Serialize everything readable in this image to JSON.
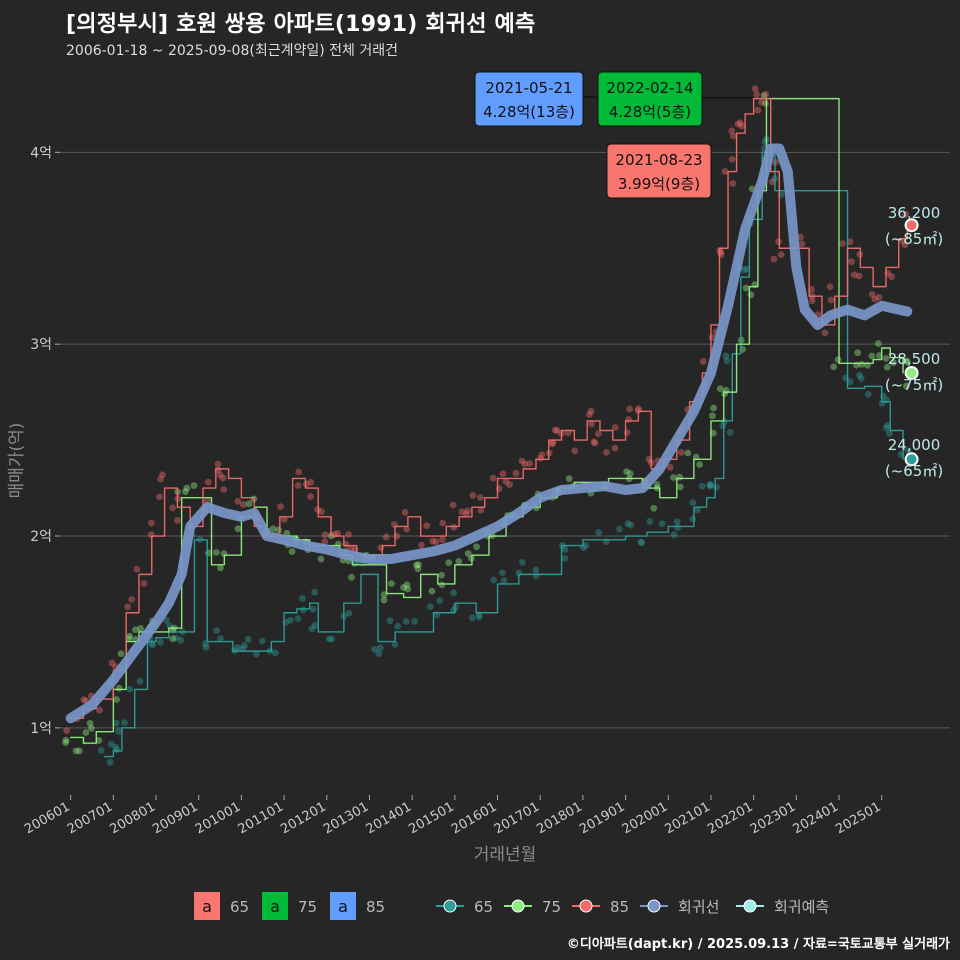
{
  "title": "[의정부시] 호원 쌍용 아파트(1991) 회귀선 예측",
  "subtitle": "2006-01-18 ~ 2025-09-08(최근계약일) 전체 거래건",
  "credit": "©디아파트(dapt.kr) / 2025.09.13 / 자료=국토교통부 실거래가",
  "colors": {
    "s65": "#2E9E9A",
    "s75": "#90EE80",
    "s85": "#F26B6B",
    "regression": "#7896C8",
    "forecast": "#9EEEE6",
    "box65": "#F8766D",
    "box75": "#00BA38",
    "box85": "#619CFF",
    "grid": "#5a5a5a",
    "background": "#262626"
  },
  "callouts": [
    {
      "date": "2021-05-21",
      "price": "4.28억(13층)",
      "color": "#619CFF"
    },
    {
      "date": "2022-02-14",
      "price": "4.28억(5층)",
      "color": "#00BA38"
    },
    {
      "date": "2021-08-23",
      "price": "3.99억(9층)",
      "color": "#F8766D"
    }
  ],
  "end_labels": [
    {
      "value": "36,200",
      "area": "(~85㎡)",
      "color": "#F26B6B"
    },
    {
      "value": "28,500",
      "area": "(~75㎡)",
      "color": "#90EE80"
    },
    {
      "value": "24,000",
      "area": "(~65㎡)",
      "color": "#2E9E9A"
    }
  ],
  "legend": {
    "box_items": [
      {
        "glyph": "a",
        "label": "65",
        "color": "#F8766D"
      },
      {
        "glyph": "a",
        "label": "75",
        "color": "#00BA38"
      },
      {
        "glyph": "a",
        "label": "85",
        "color": "#619CFF"
      }
    ],
    "line_items": [
      {
        "label": "65",
        "color": "#2E9E9A"
      },
      {
        "label": "75",
        "color": "#90EE80"
      },
      {
        "label": "85",
        "color": "#F26B6B"
      },
      {
        "label": "회귀선",
        "color": "#7896C8"
      },
      {
        "label": "회귀예측",
        "color": "#9EEEE6"
      }
    ]
  },
  "chart_data": {
    "type": "line",
    "title": "[의정부시] 호원 쌍용 아파트(1991) 회귀선 예측",
    "subtitle": "2006-01-18 ~ 2025-09-08(최근계약일) 전체 거래건",
    "xlabel": "거래년월",
    "ylabel": "매매가(억)",
    "x_ticks": [
      "200601",
      "200701",
      "200801",
      "200901",
      "201001",
      "201101",
      "201201",
      "201301",
      "201401",
      "201501",
      "201601",
      "201701",
      "201801",
      "201901",
      "202001",
      "202101",
      "202201",
      "202301",
      "202401",
      "202501"
    ],
    "y_ticks": [
      {
        "value": 1,
        "label": "1억"
      },
      {
        "value": 2,
        "label": "2억"
      },
      {
        "value": 3,
        "label": "3억"
      },
      {
        "value": 4,
        "label": "4억"
      }
    ],
    "xlim": [
      2005.75,
      2026.6
    ],
    "ylim": [
      0.65,
      4.45
    ],
    "grid": true,
    "legend_position": "bottom",
    "series": [
      {
        "name": "65",
        "x": [
          2006.8,
          2007.0,
          2007.2,
          2007.5,
          2007.8,
          2008.0,
          2008.3,
          2008.6,
          2008.9,
          2009.2,
          2009.5,
          2009.8,
          2010.1,
          2010.4,
          2010.7,
          2011.0,
          2011.3,
          2011.6,
          2011.8,
          2012.0,
          2012.4,
          2012.8,
          2013.2,
          2013.6,
          2014.0,
          2014.5,
          2015.0,
          2015.5,
          2016.0,
          2016.5,
          2017.0,
          2017.5,
          2018.0,
          2018.5,
          2019.0,
          2019.5,
          2020.0,
          2020.3,
          2020.6,
          2020.9,
          2021.1,
          2021.3,
          2021.5,
          2021.7,
          2021.9,
          2022.2,
          2022.5,
          2024.2,
          2024.6,
          2025.0,
          2025.2,
          2025.5
        ],
        "y": [
          0.85,
          0.88,
          1.0,
          1.2,
          1.45,
          1.47,
          1.5,
          1.5,
          1.98,
          1.45,
          1.45,
          1.4,
          1.4,
          1.4,
          1.45,
          1.6,
          1.62,
          1.65,
          1.5,
          1.5,
          1.65,
          1.8,
          1.45,
          1.5,
          1.5,
          1.6,
          1.65,
          1.6,
          1.75,
          1.8,
          1.8,
          1.95,
          1.98,
          1.98,
          2.0,
          2.02,
          2.05,
          2.05,
          2.15,
          2.2,
          2.3,
          2.6,
          2.95,
          3.35,
          3.65,
          4.0,
          3.8,
          2.77,
          2.78,
          2.7,
          2.55,
          2.4
        ]
      },
      {
        "name": "75",
        "x": [
          2006.0,
          2006.3,
          2006.6,
          2007.0,
          2007.3,
          2007.6,
          2008.0,
          2008.3,
          2008.6,
          2009.0,
          2009.3,
          2009.6,
          2010.0,
          2010.3,
          2010.6,
          2011.0,
          2011.3,
          2011.6,
          2012.0,
          2012.3,
          2012.6,
          2013.0,
          2013.4,
          2013.8,
          2014.2,
          2014.6,
          2015.0,
          2015.4,
          2015.8,
          2016.2,
          2016.6,
          2017.0,
          2017.4,
          2017.8,
          2018.2,
          2018.6,
          2019.0,
          2019.4,
          2019.8,
          2020.2,
          2020.6,
          2021.0,
          2021.3,
          2021.6,
          2021.9,
          2022.1,
          2022.3,
          2024.0,
          2024.4,
          2024.8,
          2025.0,
          2025.2,
          2025.5
        ],
        "y": [
          0.95,
          0.92,
          0.98,
          1.2,
          1.45,
          1.5,
          1.5,
          1.52,
          2.2,
          2.2,
          1.85,
          1.9,
          2.1,
          2.15,
          2.0,
          2.0,
          1.98,
          1.95,
          1.95,
          1.9,
          1.85,
          1.85,
          1.7,
          1.68,
          1.8,
          1.75,
          1.85,
          1.9,
          2.0,
          2.1,
          2.15,
          2.2,
          2.25,
          2.28,
          2.28,
          2.3,
          2.3,
          2.25,
          2.2,
          2.3,
          2.4,
          2.6,
          2.75,
          3.0,
          3.3,
          3.8,
          4.28,
          2.9,
          2.9,
          2.92,
          2.98,
          2.93,
          2.85
        ]
      },
      {
        "name": "85",
        "x": [
          2006.0,
          2006.3,
          2006.6,
          2007.0,
          2007.3,
          2007.6,
          2007.9,
          2008.2,
          2008.5,
          2008.8,
          2009.1,
          2009.4,
          2009.7,
          2010.0,
          2010.3,
          2010.6,
          2010.9,
          2011.2,
          2011.5,
          2011.8,
          2012.1,
          2012.4,
          2012.7,
          2013.0,
          2013.3,
          2013.6,
          2013.9,
          2014.2,
          2014.5,
          2014.8,
          2015.1,
          2015.4,
          2015.7,
          2016.0,
          2016.3,
          2016.6,
          2016.9,
          2017.2,
          2017.5,
          2017.8,
          2018.1,
          2018.4,
          2018.7,
          2019.0,
          2019.3,
          2019.6,
          2019.9,
          2020.2,
          2020.5,
          2020.8,
          2021.0,
          2021.2,
          2021.4,
          2021.6,
          2021.8,
          2022.0,
          2022.2,
          2022.4,
          2022.6,
          2023.0,
          2023.3,
          2023.6,
          2023.9,
          2024.2,
          2024.5,
          2024.8,
          2025.1,
          2025.4,
          2025.6
        ],
        "y": [
          1.05,
          1.1,
          1.15,
          1.3,
          1.6,
          1.8,
          2.0,
          2.25,
          2.15,
          2.05,
          2.25,
          2.35,
          2.3,
          2.2,
          2.05,
          2.0,
          2.1,
          2.3,
          2.25,
          2.1,
          2.0,
          1.95,
          1.9,
          1.9,
          1.95,
          2.05,
          2.1,
          2.0,
          2.0,
          2.05,
          2.1,
          2.15,
          2.2,
          2.3,
          2.3,
          2.35,
          2.4,
          2.5,
          2.55,
          2.5,
          2.6,
          2.55,
          2.5,
          2.6,
          2.65,
          2.35,
          2.4,
          2.5,
          2.7,
          2.85,
          3.1,
          3.5,
          3.9,
          4.1,
          4.2,
          4.28,
          4.28,
          3.9,
          3.5,
          3.5,
          3.25,
          3.1,
          3.25,
          3.5,
          3.4,
          3.3,
          3.4,
          3.55,
          3.62
        ]
      },
      {
        "name": "회귀선",
        "x": [
          2006.0,
          2006.5,
          2007.0,
          2007.5,
          2008.0,
          2008.3,
          2008.6,
          2008.8,
          2009.2,
          2009.6,
          2010.0,
          2010.3,
          2010.6,
          2011.0,
          2011.5,
          2012.0,
          2012.5,
          2013.0,
          2013.5,
          2014.0,
          2014.5,
          2015.0,
          2015.5,
          2016.0,
          2016.5,
          2017.0,
          2017.5,
          2018.0,
          2018.5,
          2019.0,
          2019.4,
          2019.8,
          2020.2,
          2020.6,
          2021.0,
          2021.4,
          2021.8,
          2022.2,
          2022.4,
          2022.6,
          2022.8,
          2023.0,
          2023.2,
          2023.5,
          2023.8,
          2024.2,
          2024.6,
          2025.0,
          2025.4,
          2025.6
        ],
        "y": [
          1.05,
          1.12,
          1.25,
          1.4,
          1.55,
          1.65,
          1.8,
          2.05,
          2.15,
          2.12,
          2.1,
          2.12,
          2.0,
          1.98,
          1.95,
          1.93,
          1.9,
          1.88,
          1.88,
          1.9,
          1.92,
          1.95,
          2.0,
          2.05,
          2.12,
          2.2,
          2.24,
          2.25,
          2.26,
          2.24,
          2.25,
          2.35,
          2.5,
          2.65,
          2.85,
          3.2,
          3.6,
          3.85,
          4.02,
          4.02,
          3.9,
          3.4,
          3.18,
          3.1,
          3.15,
          3.18,
          3.15,
          3.2,
          3.18,
          3.17
        ]
      }
    ],
    "forecast_points": [
      {
        "series": "85",
        "x": 2025.7,
        "y": 3.62,
        "label": "36,200"
      },
      {
        "series": "75",
        "x": 2025.7,
        "y": 2.85,
        "label": "28,500"
      },
      {
        "series": "65",
        "x": 2025.7,
        "y": 2.4,
        "label": "24,000"
      }
    ]
  }
}
